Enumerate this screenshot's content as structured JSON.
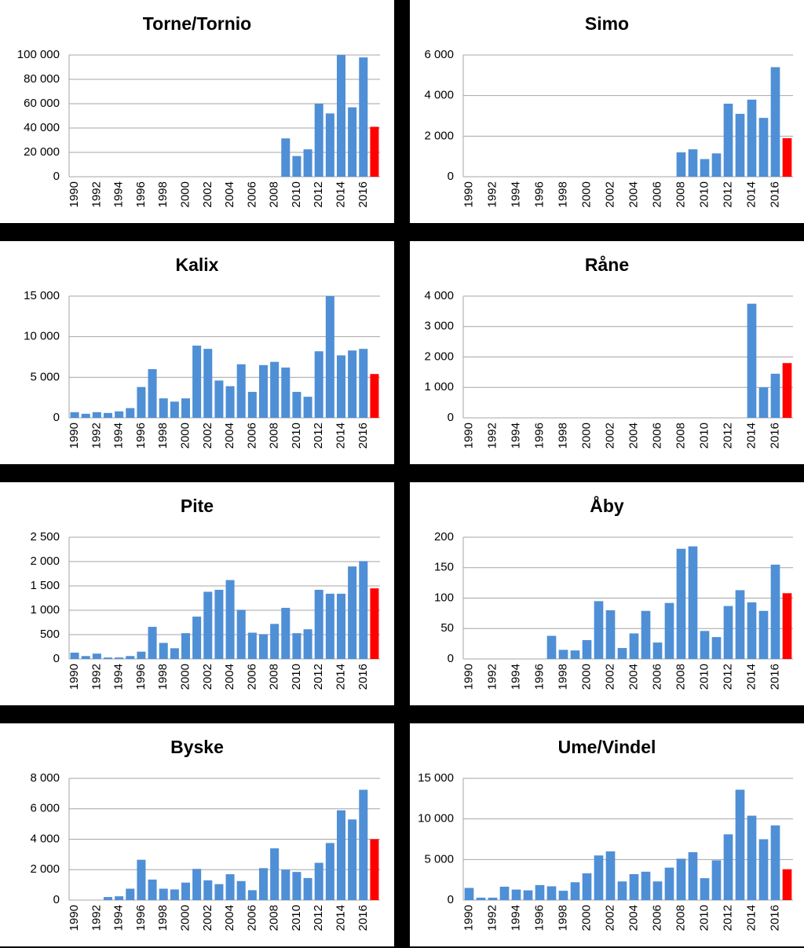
{
  "chart_data": [
    {
      "type": "bar",
      "title": "Torne/Tornio",
      "categories": [
        "1990",
        null,
        "1992",
        null,
        "1994",
        null,
        "1996",
        null,
        "1998",
        null,
        "2000",
        null,
        "2002",
        null,
        "2004",
        null,
        "2006",
        null,
        "2008",
        null,
        "2010",
        null,
        "2012",
        null,
        "2014",
        null,
        "2016",
        null
      ],
      "values": [
        0,
        0,
        0,
        0,
        0,
        0,
        0,
        0,
        0,
        0,
        0,
        0,
        0,
        0,
        0,
        0,
        0,
        0,
        0,
        31500,
        17000,
        22500,
        60000,
        52000,
        100000,
        57000,
        98000,
        41000
      ],
      "color": "#4f8fd6",
      "last_color": "#ff0000",
      "grid": true,
      "ylim": [
        0,
        100000
      ],
      "yticks": [
        0,
        {
          "value": 20000,
          "label": "20 000"
        },
        {
          "value": 40000,
          "label": "40 000"
        },
        {
          "value": 60000,
          "label": "60 000"
        },
        {
          "value": 80000,
          "label": "80 000"
        },
        {
          "value": 100000,
          "label": "100 000"
        }
      ]
    },
    {
      "type": "bar",
      "title": "Simo",
      "categories": [
        "1990",
        null,
        "1992",
        null,
        "1994",
        null,
        "1996",
        null,
        "1998",
        null,
        "2000",
        null,
        "2002",
        null,
        "2004",
        null,
        "2006",
        null,
        "2008",
        null,
        "2010",
        null,
        "2012",
        null,
        "2014",
        null,
        "2016",
        null
      ],
      "values": [
        0,
        0,
        0,
        0,
        0,
        0,
        0,
        0,
        0,
        0,
        0,
        0,
        0,
        0,
        0,
        0,
        0,
        0,
        1200,
        1350,
        870,
        1150,
        3600,
        3100,
        3800,
        2900,
        5400,
        1900
      ],
      "color": "#4f8fd6",
      "last_color": "#ff0000",
      "grid": true,
      "ylim": [
        0,
        6000
      ],
      "yticks": [
        0,
        {
          "value": 2000,
          "label": "2 000"
        },
        {
          "value": 4000,
          "label": "4 000"
        },
        {
          "value": 6000,
          "label": "6 000"
        }
      ]
    },
    {
      "type": "bar",
      "title": "Kalix",
      "categories": [
        "1990",
        null,
        "1992",
        null,
        "1994",
        null,
        "1996",
        null,
        "1998",
        null,
        "2000",
        null,
        "2002",
        null,
        "2004",
        null,
        "2006",
        null,
        "2008",
        null,
        "2010",
        null,
        "2012",
        null,
        "2014",
        null,
        "2016",
        null
      ],
      "values": [
        700,
        500,
        700,
        600,
        800,
        1200,
        3800,
        6000,
        2400,
        2000,
        2400,
        8900,
        8500,
        4600,
        3900,
        6600,
        3200,
        6500,
        6900,
        6200,
        3200,
        2600,
        8200,
        15000,
        7700,
        8300,
        8500,
        5400
      ],
      "color": "#4f8fd6",
      "last_color": "#ff0000",
      "grid": true,
      "ylim": [
        0,
        15000
      ],
      "yticks": [
        0,
        {
          "value": 5000,
          "label": "5 000"
        },
        {
          "value": 10000,
          "label": "10 000"
        },
        {
          "value": 15000,
          "label": "15 000"
        }
      ]
    },
    {
      "type": "bar",
      "title": "Råne",
      "categories": [
        "1990",
        null,
        "1992",
        null,
        "1994",
        null,
        "1996",
        null,
        "1998",
        null,
        "2000",
        null,
        "2002",
        null,
        "2004",
        null,
        "2006",
        null,
        "2008",
        null,
        "2010",
        null,
        "2012",
        null,
        "2014",
        null,
        "2016",
        null
      ],
      "values": [
        0,
        0,
        0,
        0,
        0,
        0,
        0,
        0,
        0,
        0,
        0,
        0,
        0,
        0,
        0,
        0,
        0,
        0,
        0,
        0,
        0,
        0,
        0,
        0,
        3750,
        1000,
        1450,
        1800
      ],
      "color": "#4f8fd6",
      "last_color": "#ff0000",
      "grid": true,
      "ylim": [
        0,
        4000
      ],
      "yticks": [
        0,
        {
          "value": 1000,
          "label": "1 000"
        },
        {
          "value": 2000,
          "label": "2 000"
        },
        {
          "value": 3000,
          "label": "3 000"
        },
        {
          "value": 4000,
          "label": "4 000"
        }
      ]
    },
    {
      "type": "bar",
      "title": "Pite",
      "categories": [
        "1990",
        null,
        "1992",
        null,
        "1994",
        null,
        "1996",
        null,
        "1998",
        null,
        "2000",
        null,
        "2002",
        null,
        "2004",
        null,
        "2006",
        null,
        "2008",
        null,
        "2010",
        null,
        "2012",
        null,
        "2014",
        null,
        "2016",
        null
      ],
      "values": [
        130,
        60,
        110,
        30,
        30,
        60,
        150,
        660,
        330,
        220,
        530,
        870,
        1380,
        1420,
        1620,
        1010,
        540,
        510,
        720,
        1050,
        530,
        610,
        1420,
        1340,
        1340,
        1900,
        2010,
        1450
      ],
      "color": "#4f8fd6",
      "last_color": "#ff0000",
      "grid": true,
      "ylim": [
        0,
        2500
      ],
      "yticks": [
        0,
        500,
        {
          "value": 1000,
          "label": "1 000"
        },
        {
          "value": 1500,
          "label": "1 500"
        },
        {
          "value": 2000,
          "label": "2 000"
        },
        {
          "value": 2500,
          "label": "2 500"
        }
      ]
    },
    {
      "type": "bar",
      "title": "Åby",
      "categories": [
        "1990",
        null,
        "1992",
        null,
        "1994",
        null,
        "1996",
        null,
        "1998",
        null,
        "2000",
        null,
        "2002",
        null,
        "2004",
        null,
        "2006",
        null,
        "2008",
        null,
        "2010",
        null,
        "2012",
        null,
        "2014",
        null,
        "2016",
        null
      ],
      "values": [
        0,
        0,
        0,
        0,
        0,
        0,
        0,
        38,
        15,
        14,
        31,
        95,
        80,
        18,
        42,
        79,
        27,
        92,
        181,
        185,
        46,
        36,
        87,
        113,
        93,
        79,
        155,
        108
      ],
      "color": "#4f8fd6",
      "last_color": "#ff0000",
      "grid": true,
      "ylim": [
        0,
        200
      ],
      "yticks": [
        0,
        50,
        100,
        150,
        200
      ]
    },
    {
      "type": "bar",
      "title": "Byske",
      "categories": [
        "1990",
        null,
        "1992",
        null,
        "1994",
        null,
        "1996",
        null,
        "1998",
        null,
        "2000",
        null,
        "2002",
        null,
        "2004",
        null,
        "2006",
        null,
        "2008",
        null,
        "2010",
        null,
        "2012",
        null,
        "2014",
        null,
        "2016",
        null
      ],
      "values": [
        0,
        0,
        0,
        200,
        250,
        750,
        2650,
        1350,
        750,
        700,
        1150,
        2050,
        1300,
        1050,
        1700,
        1250,
        650,
        2100,
        3400,
        2000,
        1850,
        1450,
        2450,
        3750,
        5900,
        5300,
        7250,
        4000
      ],
      "color": "#4f8fd6",
      "last_color": "#ff0000",
      "grid": true,
      "ylim": [
        0,
        8000
      ],
      "yticks": [
        0,
        {
          "value": 2000,
          "label": "2 000"
        },
        {
          "value": 4000,
          "label": "4 000"
        },
        {
          "value": 6000,
          "label": "6 000"
        },
        {
          "value": 8000,
          "label": "8 000"
        }
      ]
    },
    {
      "type": "bar",
      "title": "Ume/Vindel",
      "categories": [
        "1990",
        null,
        "1992",
        null,
        "1994",
        null,
        "1996",
        null,
        "1998",
        null,
        "2000",
        null,
        "2002",
        null,
        "2004",
        null,
        "2006",
        null,
        "2008",
        null,
        "2010",
        null,
        "2012",
        null,
        "2014",
        null,
        "2016",
        null
      ],
      "values": [
        1500,
        300,
        300,
        1650,
        1300,
        1200,
        1850,
        1700,
        1150,
        2200,
        3300,
        5500,
        6000,
        2300,
        3200,
        3500,
        2300,
        4000,
        5100,
        5900,
        2700,
        4900,
        8100,
        13600,
        10400,
        7500,
        9200,
        3800
      ],
      "color": "#4f8fd6",
      "last_color": "#ff0000",
      "grid": true,
      "ylim": [
        0,
        15000
      ],
      "yticks": [
        0,
        {
          "value": 5000,
          "label": "5 000"
        },
        {
          "value": 10000,
          "label": "10 000"
        },
        {
          "value": 15000,
          "label": "15 000"
        }
      ]
    }
  ]
}
